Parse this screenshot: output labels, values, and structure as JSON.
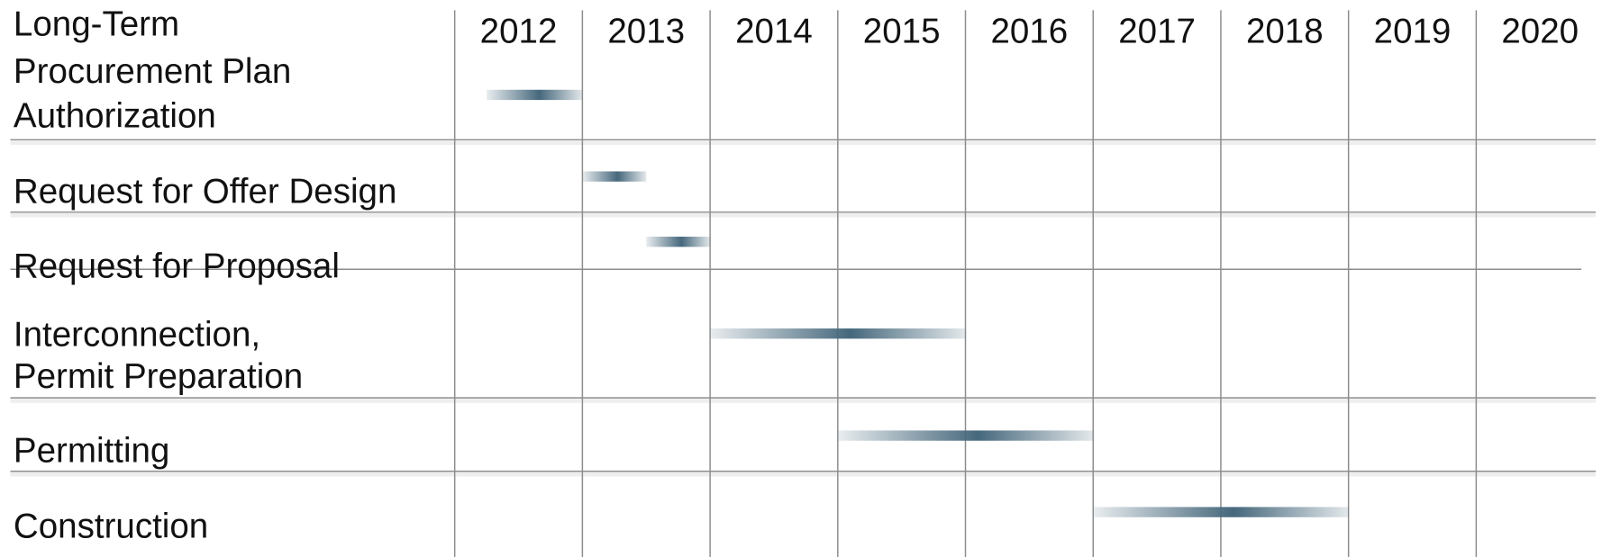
{
  "chart_data": {
    "type": "gantt",
    "xlim": [
      2012,
      2021
    ],
    "xticks": [
      2012,
      2013,
      2014,
      2015,
      2016,
      2017,
      2018,
      2019,
      2020
    ],
    "color": "#46687c",
    "tasks": [
      {
        "label": [
          "Long-Term",
          "Procurement Plan",
          "Authorization"
        ],
        "start": 2012.25,
        "end": 2013.0
      },
      {
        "label": [
          "Request for Offer Design"
        ],
        "start": 2013.0,
        "end": 2013.5
      },
      {
        "label": [
          "Request for Proposal"
        ],
        "start": 2013.5,
        "end": 2014.0
      },
      {
        "label": [
          "Interconnection,",
          "Permit Preparation"
        ],
        "start": 2014.0,
        "end": 2016.0
      },
      {
        "label": [
          "Permitting"
        ],
        "start": 2015.0,
        "end": 2017.0
      },
      {
        "label": [
          "Construction"
        ],
        "start": 2017.0,
        "end": 2019.0
      }
    ]
  }
}
